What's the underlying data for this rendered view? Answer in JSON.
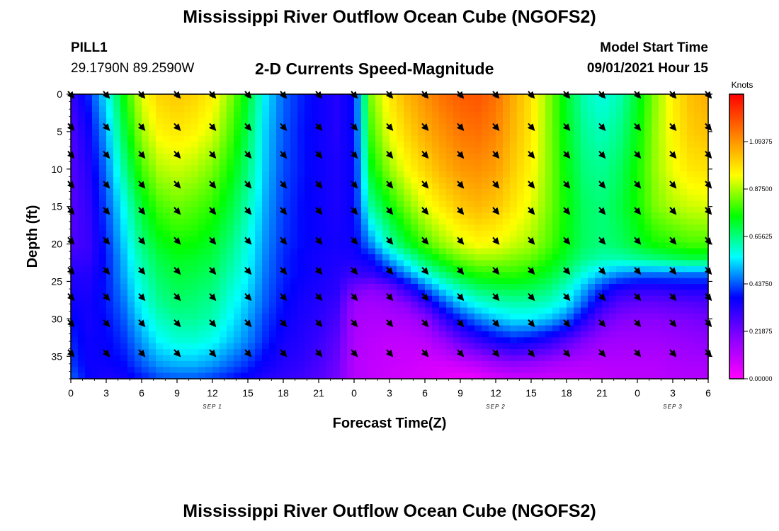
{
  "page": {
    "title_top": "Mississippi River Outflow Ocean Cube (NGOFS2)",
    "title_bottom": "Mississippi River Outflow Ocean Cube (NGOFS2)",
    "station": "PILL1",
    "coordinates": "29.1790N  89.2590W",
    "model_start_label": "Model Start Time",
    "model_start_value": "09/01/2021 Hour 15"
  },
  "chart_data": {
    "type": "heatmap",
    "title": "2-D Currents Speed-Magnitude",
    "xlabel": "Forecast Time(Z)",
    "ylabel": "Depth (ft)",
    "x_tick_labels": [
      "0",
      "3",
      "6",
      "9",
      "12",
      "15",
      "18",
      "21",
      "0",
      "3",
      "6",
      "9",
      "12",
      "15",
      "18",
      "21",
      "0",
      "3",
      "6"
    ],
    "x_hours": [
      0,
      3,
      6,
      9,
      12,
      15,
      18,
      21,
      24,
      27,
      30,
      33,
      36,
      39,
      42,
      45,
      48,
      51,
      54
    ],
    "x_range": [
      0,
      54
    ],
    "date_labels": [
      {
        "text": "SEP 1",
        "hour": 12
      },
      {
        "text": "SEP 2",
        "hour": 36
      },
      {
        "text": "SEP 3",
        "hour": 51
      }
    ],
    "y_ticks": [
      0,
      5,
      10,
      15,
      20,
      25,
      30,
      35
    ],
    "y_range": [
      0,
      38
    ],
    "y_inverted": true,
    "colorbar": {
      "unit": "Knots",
      "tick_labels": [
        "1.09375",
        "0.87500",
        "0.65625",
        "0.43750",
        "0.21875",
        "0.00000"
      ],
      "tick_values": [
        1.09375,
        0.875,
        0.65625,
        0.4375,
        0.21875,
        0.0
      ],
      "range": [
        0,
        1.3125
      ],
      "colors": [
        "#ff00ff",
        "#8a00ff",
        "#0000ff",
        "#00ffff",
        "#00ff00",
        "#ffff00",
        "#ff8000",
        "#ff0000"
      ]
    },
    "vectors": {
      "x_hours": [
        0,
        3,
        6,
        9,
        12,
        15,
        18,
        21,
        24,
        27,
        30,
        33,
        36,
        39,
        42,
        45,
        48,
        51,
        54
      ],
      "depths_ft": [
        0,
        4.3,
        8,
        12,
        15.5,
        19.5,
        23.5,
        27,
        30.5,
        34.5
      ],
      "direction": "southeast"
    },
    "speed_knots": {
      "time_hours": [
        0,
        1.5,
        3,
        4.5,
        6,
        7.5,
        9,
        10.5,
        12,
        13.5,
        15,
        16.5,
        18,
        19.5,
        21,
        22.5,
        24,
        25.5,
        27,
        28.5,
        30,
        31.5,
        33,
        34.5,
        36,
        37.5,
        39,
        40.5,
        42,
        43.5,
        45,
        46.5,
        48,
        49.5,
        51,
        52.5,
        54
      ],
      "depths_ft": [
        0,
        5,
        10,
        15,
        20,
        22,
        24,
        26,
        28,
        30,
        33,
        36,
        38
      ],
      "values": [
        [
          0.3,
          0.27,
          0.26,
          0.26,
          0.27,
          0.3,
          0.33,
          0.34,
          0.36,
          0.38,
          0.4,
          0.42,
          0.45
        ],
        [
          0.4,
          0.36,
          0.33,
          0.31,
          0.3,
          0.31,
          0.33,
          0.34,
          0.35,
          0.35,
          0.36,
          0.36,
          0.37
        ],
        [
          0.55,
          0.5,
          0.46,
          0.43,
          0.4,
          0.39,
          0.39,
          0.39,
          0.39,
          0.38,
          0.37,
          0.36,
          0.34
        ],
        [
          0.75,
          0.7,
          0.64,
          0.57,
          0.53,
          0.51,
          0.5,
          0.48,
          0.46,
          0.44,
          0.41,
          0.38,
          0.35
        ],
        [
          0.92,
          0.87,
          0.8,
          0.72,
          0.66,
          0.63,
          0.61,
          0.59,
          0.57,
          0.54,
          0.49,
          0.44,
          0.39
        ],
        [
          1.0,
          0.95,
          0.88,
          0.8,
          0.73,
          0.7,
          0.68,
          0.66,
          0.64,
          0.61,
          0.56,
          0.49,
          0.43
        ],
        [
          1.02,
          0.97,
          0.9,
          0.83,
          0.76,
          0.73,
          0.71,
          0.69,
          0.67,
          0.64,
          0.59,
          0.51,
          0.44
        ],
        [
          1.0,
          0.95,
          0.88,
          0.81,
          0.75,
          0.72,
          0.7,
          0.68,
          0.66,
          0.64,
          0.59,
          0.51,
          0.44
        ],
        [
          0.96,
          0.91,
          0.84,
          0.78,
          0.72,
          0.7,
          0.68,
          0.66,
          0.64,
          0.62,
          0.57,
          0.49,
          0.42
        ],
        [
          0.85,
          0.81,
          0.76,
          0.71,
          0.66,
          0.64,
          0.62,
          0.6,
          0.58,
          0.56,
          0.52,
          0.45,
          0.39
        ],
        [
          0.72,
          0.69,
          0.66,
          0.62,
          0.58,
          0.57,
          0.56,
          0.54,
          0.52,
          0.5,
          0.47,
          0.41,
          0.36
        ],
        [
          0.55,
          0.53,
          0.52,
          0.5,
          0.48,
          0.47,
          0.46,
          0.45,
          0.44,
          0.42,
          0.4,
          0.36,
          0.33
        ],
        [
          0.45,
          0.44,
          0.43,
          0.42,
          0.41,
          0.4,
          0.4,
          0.39,
          0.38,
          0.37,
          0.35,
          0.33,
          0.31
        ],
        [
          0.4,
          0.39,
          0.39,
          0.38,
          0.38,
          0.37,
          0.37,
          0.36,
          0.35,
          0.34,
          0.33,
          0.31,
          0.29
        ],
        [
          0.36,
          0.36,
          0.36,
          0.36,
          0.36,
          0.35,
          0.35,
          0.34,
          0.33,
          0.32,
          0.3,
          0.28,
          0.26
        ],
        [
          0.33,
          0.33,
          0.34,
          0.34,
          0.35,
          0.34,
          0.33,
          0.32,
          0.3,
          0.28,
          0.25,
          0.23,
          0.22
        ],
        [
          0.38,
          0.38,
          0.37,
          0.37,
          0.36,
          0.34,
          0.3,
          0.22,
          0.16,
          0.14,
          0.13,
          0.12,
          0.12
        ],
        [
          0.85,
          0.8,
          0.74,
          0.64,
          0.48,
          0.38,
          0.31,
          0.19,
          0.15,
          0.13,
          0.11,
          0.1,
          0.1
        ],
        [
          0.97,
          0.93,
          0.86,
          0.75,
          0.62,
          0.5,
          0.38,
          0.22,
          0.16,
          0.13,
          0.1,
          0.09,
          0.08
        ],
        [
          1.05,
          1.0,
          0.94,
          0.84,
          0.72,
          0.6,
          0.48,
          0.32,
          0.2,
          0.14,
          0.1,
          0.08,
          0.07
        ],
        [
          1.1,
          1.06,
          1.0,
          0.92,
          0.8,
          0.7,
          0.58,
          0.44,
          0.3,
          0.18,
          0.11,
          0.07,
          0.06
        ],
        [
          1.15,
          1.1,
          1.05,
          0.97,
          0.86,
          0.77,
          0.66,
          0.54,
          0.42,
          0.3,
          0.16,
          0.07,
          0.04
        ],
        [
          1.18,
          1.14,
          1.09,
          1.02,
          0.91,
          0.83,
          0.73,
          0.62,
          0.52,
          0.4,
          0.24,
          0.09,
          0.02
        ],
        [
          1.19,
          1.15,
          1.1,
          1.04,
          0.94,
          0.86,
          0.77,
          0.67,
          0.58,
          0.47,
          0.3,
          0.12,
          0.03
        ],
        [
          1.15,
          1.12,
          1.08,
          1.02,
          0.93,
          0.86,
          0.78,
          0.69,
          0.61,
          0.52,
          0.35,
          0.16,
          0.06
        ],
        [
          1.06,
          1.04,
          1.01,
          0.97,
          0.9,
          0.84,
          0.78,
          0.7,
          0.62,
          0.55,
          0.38,
          0.18,
          0.08
        ],
        [
          0.98,
          0.97,
          0.95,
          0.92,
          0.87,
          0.82,
          0.76,
          0.69,
          0.62,
          0.55,
          0.36,
          0.17,
          0.08
        ],
        [
          0.85,
          0.85,
          0.85,
          0.84,
          0.81,
          0.77,
          0.72,
          0.66,
          0.6,
          0.52,
          0.32,
          0.15,
          0.08
        ],
        [
          0.72,
          0.73,
          0.74,
          0.75,
          0.74,
          0.71,
          0.66,
          0.6,
          0.55,
          0.46,
          0.26,
          0.13,
          0.08
        ],
        [
          0.62,
          0.64,
          0.66,
          0.68,
          0.68,
          0.65,
          0.58,
          0.5,
          0.44,
          0.34,
          0.2,
          0.12,
          0.09
        ],
        [
          0.58,
          0.61,
          0.64,
          0.66,
          0.66,
          0.62,
          0.52,
          0.4,
          0.32,
          0.24,
          0.16,
          0.12,
          0.1
        ],
        [
          0.62,
          0.65,
          0.68,
          0.7,
          0.68,
          0.62,
          0.48,
          0.34,
          0.26,
          0.2,
          0.15,
          0.12,
          0.11
        ],
        [
          0.72,
          0.74,
          0.76,
          0.76,
          0.72,
          0.64,
          0.46,
          0.32,
          0.24,
          0.19,
          0.15,
          0.12,
          0.11
        ],
        [
          0.85,
          0.86,
          0.86,
          0.84,
          0.76,
          0.66,
          0.46,
          0.32,
          0.24,
          0.19,
          0.15,
          0.12,
          0.11
        ],
        [
          0.96,
          0.95,
          0.93,
          0.88,
          0.78,
          0.68,
          0.46,
          0.33,
          0.25,
          0.2,
          0.16,
          0.13,
          0.12
        ],
        [
          1.03,
          1.01,
          0.97,
          0.9,
          0.8,
          0.7,
          0.46,
          0.34,
          0.26,
          0.21,
          0.17,
          0.14,
          0.12
        ],
        [
          1.06,
          1.03,
          0.98,
          0.91,
          0.8,
          0.7,
          0.46,
          0.34,
          0.27,
          0.22,
          0.18,
          0.14,
          0.12
        ]
      ]
    }
  }
}
